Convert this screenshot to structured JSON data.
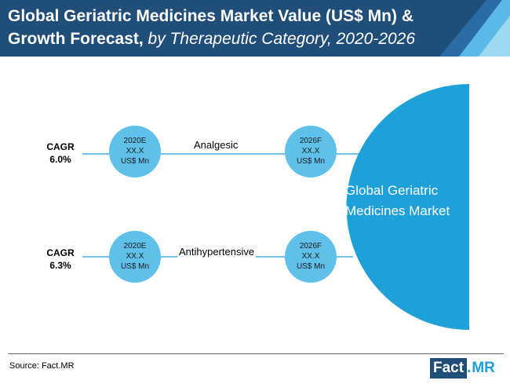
{
  "header": {
    "title_main": "Global Geriatric Medicines Market Value (US$ Mn) & Growth Forecast,",
    "title_italic": "by Therapeutic Category, 2020-2026"
  },
  "rows": [
    {
      "cagr_label": "CAGR",
      "cagr_value": "6.0%",
      "category": "Analgesic",
      "start": {
        "year": "2020E",
        "value": "XX.X",
        "unit": "US$ Mn"
      },
      "end": {
        "year": "2026F",
        "value": "XX.X",
        "unit": "US$ Mn"
      }
    },
    {
      "cagr_label": "CAGR",
      "cagr_value": "6.3%",
      "category": "Antihypertensive",
      "start": {
        "year": "2020E",
        "value": "XX.X",
        "unit": "US$ Mn"
      },
      "end": {
        "year": "2026F",
        "value": "XX.X",
        "unit": "US$ Mn"
      }
    }
  ],
  "market": {
    "line1": "Global Geriatric",
    "line2": "Medicines Market"
  },
  "footer": {
    "source": "Source: Fact.MR"
  },
  "logo": {
    "fact": "Fact",
    "dot": ".",
    "mr": "MR"
  },
  "colors": {
    "header_bg": "#1f4e79",
    "accent_blue": "#1ea0d8",
    "circle_fill": "#5fc0ea",
    "connector": "#1ea0d8"
  }
}
